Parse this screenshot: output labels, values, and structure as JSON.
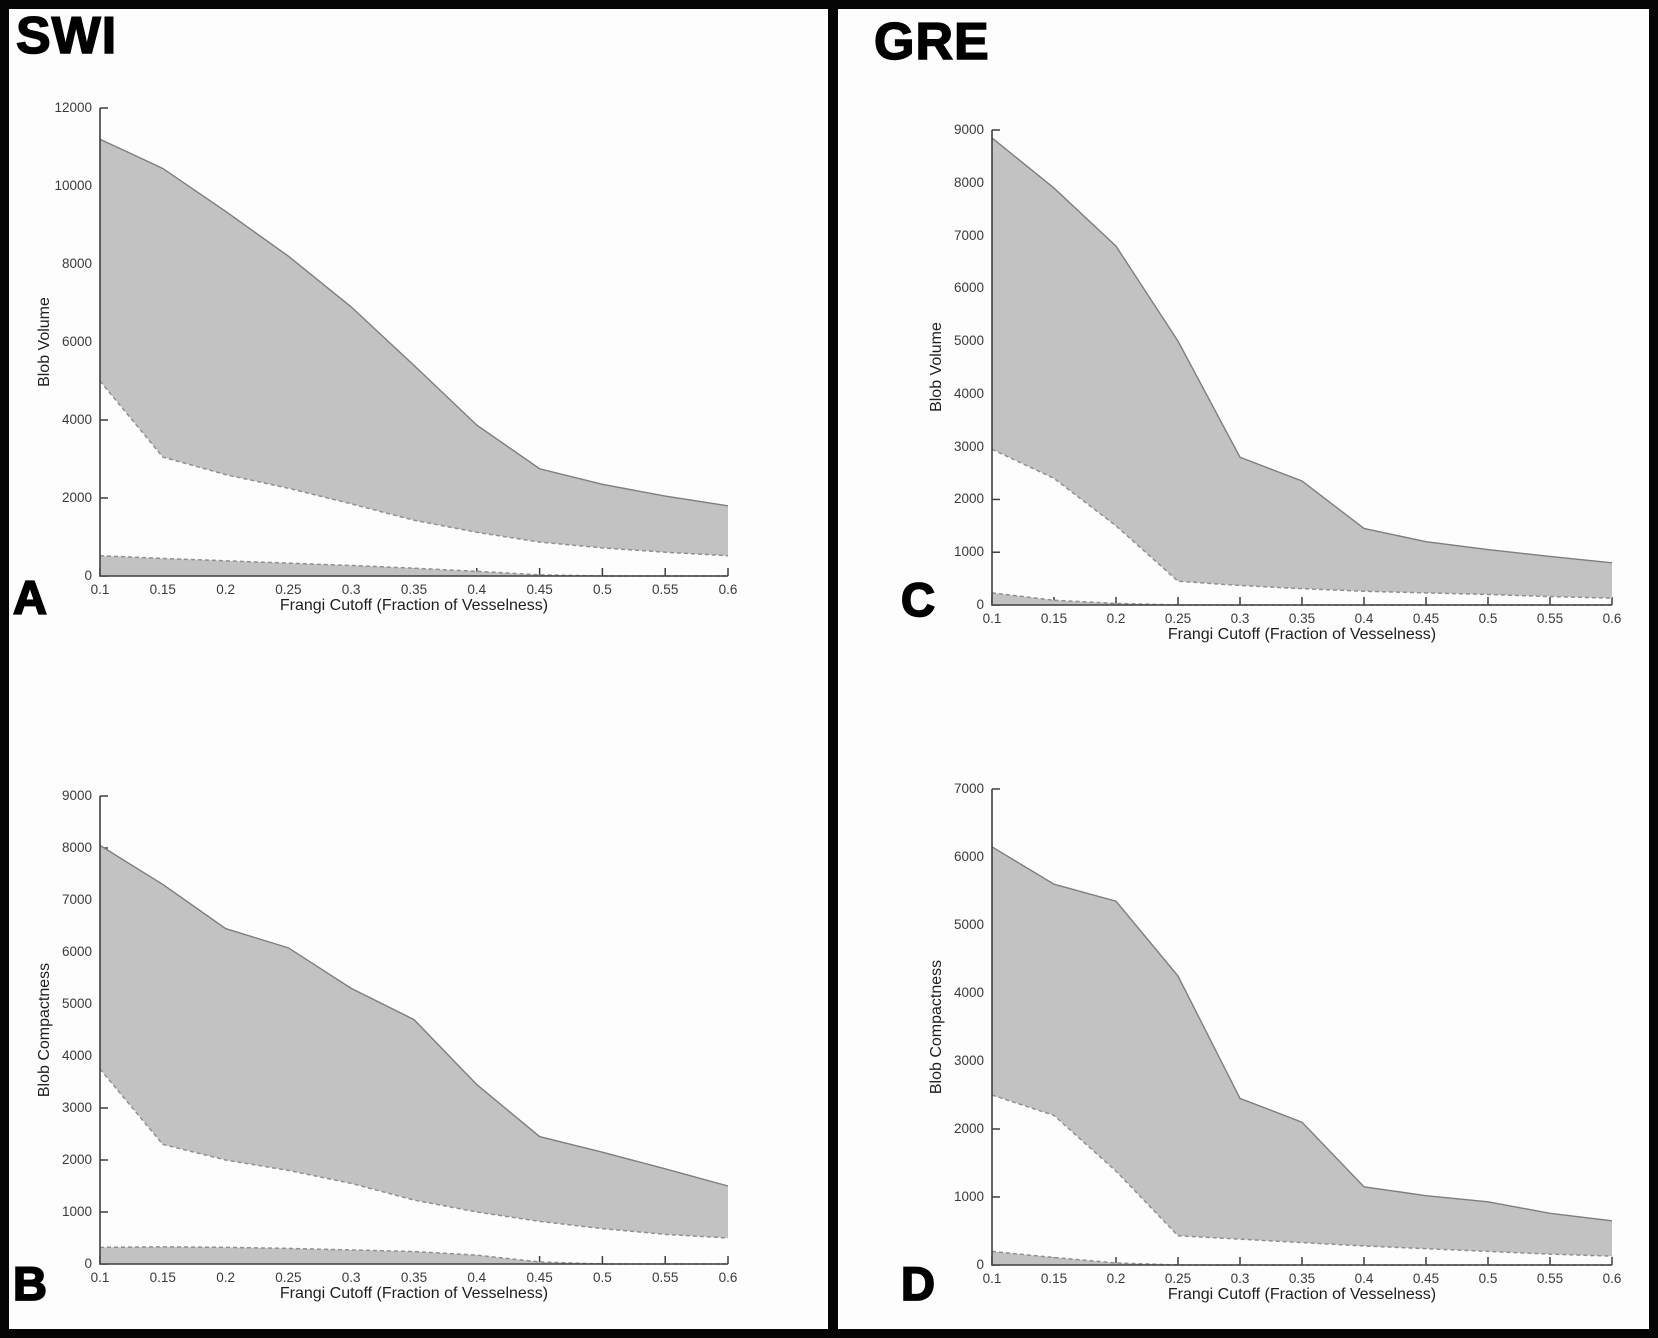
{
  "header": {
    "left": "SWI",
    "right": "GRE"
  },
  "colors": {
    "fill": "#c2c2c2",
    "solid_line": "#7e7e7e",
    "dashed_line": "#909090",
    "axis": "#3f3f3f",
    "border": "#050505",
    "background": "#ffffff"
  },
  "chart_data": [
    {
      "id": "A",
      "panel_label": "A",
      "type": "area",
      "group": "SWI",
      "xlabel": "Frangi Cutoff (Fraction of Vesselness)",
      "ylabel": "Blob Volume",
      "x": [
        0.1,
        0.15,
        0.2,
        0.25,
        0.3,
        0.35,
        0.4,
        0.45,
        0.5,
        0.55,
        0.6
      ],
      "xlim": [
        0.1,
        0.6
      ],
      "ylim": [
        0,
        12000
      ],
      "ytick_step": 2000,
      "grid": false,
      "legend": "none",
      "series": [
        {
          "name": "upper-bound-solid",
          "style": "solid",
          "values": [
            11200,
            10450,
            9350,
            8200,
            6900,
            5400,
            3870,
            2750,
            2350,
            2050,
            1800
          ]
        },
        {
          "name": "middle-bound-dashed",
          "style": "dashed",
          "values": [
            5000,
            3050,
            2600,
            2250,
            1850,
            1430,
            1120,
            870,
            720,
            610,
            520
          ]
        },
        {
          "name": "lower-bound-dashed",
          "style": "dashed",
          "values": [
            520,
            450,
            390,
            330,
            270,
            200,
            120,
            30,
            0,
            0,
            0
          ]
        }
      ],
      "shaded_bands": [
        [
          "upper-bound-solid",
          "middle-bound-dashed"
        ],
        [
          "lower-bound-dashed",
          "zero-baseline"
        ]
      ]
    },
    {
      "id": "B",
      "panel_label": "B",
      "type": "area",
      "group": "SWI",
      "xlabel": "Frangi Cutoff (Fraction of Vesselness)",
      "ylabel": "Blob Compactness",
      "x": [
        0.1,
        0.15,
        0.2,
        0.25,
        0.3,
        0.35,
        0.4,
        0.45,
        0.5,
        0.55,
        0.6
      ],
      "xlim": [
        0.1,
        0.6
      ],
      "ylim": [
        0,
        9000
      ],
      "ytick_step": 1000,
      "grid": false,
      "legend": "none",
      "series": [
        {
          "name": "upper-bound-solid",
          "style": "solid",
          "values": [
            8050,
            7300,
            6450,
            6080,
            5300,
            4700,
            3450,
            2450,
            2150,
            1830,
            1500
          ]
        },
        {
          "name": "middle-bound-dashed",
          "style": "dashed",
          "values": [
            3750,
            2300,
            2000,
            1800,
            1550,
            1230,
            1000,
            820,
            680,
            570,
            500
          ]
        },
        {
          "name": "lower-bound-dashed",
          "style": "dashed",
          "values": [
            320,
            330,
            320,
            300,
            270,
            240,
            170,
            40,
            0,
            0,
            0
          ]
        }
      ],
      "shaded_bands": [
        [
          "upper-bound-solid",
          "middle-bound-dashed"
        ],
        [
          "lower-bound-dashed",
          "zero-baseline"
        ]
      ]
    },
    {
      "id": "C",
      "panel_label": "C",
      "type": "area",
      "group": "GRE",
      "xlabel": "Frangi Cutoff (Fraction of Vesselness)",
      "ylabel": "Blob Volume",
      "x": [
        0.1,
        0.15,
        0.2,
        0.25,
        0.3,
        0.35,
        0.4,
        0.45,
        0.5,
        0.55,
        0.6
      ],
      "xlim": [
        0.1,
        0.6
      ],
      "ylim": [
        0,
        9000
      ],
      "ytick_step": 1000,
      "grid": false,
      "legend": "none",
      "series": [
        {
          "name": "upper-bound-solid",
          "style": "solid",
          "values": [
            8850,
            7900,
            6800,
            5000,
            2800,
            2350,
            1450,
            1200,
            1050,
            920,
            800
          ]
        },
        {
          "name": "middle-bound-dashed",
          "style": "dashed",
          "values": [
            2950,
            2400,
            1500,
            450,
            370,
            310,
            260,
            230,
            200,
            160,
            130
          ]
        },
        {
          "name": "lower-bound-dashed",
          "style": "dashed",
          "values": [
            230,
            90,
            30,
            0,
            0,
            0,
            0,
            0,
            0,
            0,
            0
          ]
        }
      ],
      "shaded_bands": [
        [
          "upper-bound-solid",
          "middle-bound-dashed"
        ],
        [
          "lower-bound-dashed",
          "zero-baseline"
        ]
      ]
    },
    {
      "id": "D",
      "panel_label": "D",
      "type": "area",
      "group": "GRE",
      "xlabel": "Frangi Cutoff (Fraction of Vesselness)",
      "ylabel": "Blob Compactness",
      "x": [
        0.1,
        0.15,
        0.2,
        0.25,
        0.3,
        0.35,
        0.4,
        0.45,
        0.5,
        0.55,
        0.6
      ],
      "xlim": [
        0.1,
        0.6
      ],
      "ylim": [
        0,
        7000
      ],
      "ytick_step": 1000,
      "grid": false,
      "legend": "none",
      "series": [
        {
          "name": "upper-bound-solid",
          "style": "solid",
          "values": [
            6150,
            5600,
            5350,
            4250,
            2450,
            2100,
            1150,
            1020,
            930,
            760,
            650
          ]
        },
        {
          "name": "middle-bound-dashed",
          "style": "dashed",
          "values": [
            2500,
            2200,
            1380,
            430,
            380,
            330,
            280,
            240,
            200,
            160,
            130
          ]
        },
        {
          "name": "lower-bound-dashed",
          "style": "dashed",
          "values": [
            200,
            110,
            30,
            0,
            0,
            0,
            0,
            0,
            0,
            0,
            0
          ]
        }
      ],
      "shaded_bands": [
        [
          "upper-bound-solid",
          "middle-bound-dashed"
        ],
        [
          "lower-bound-dashed",
          "zero-baseline"
        ]
      ]
    }
  ]
}
